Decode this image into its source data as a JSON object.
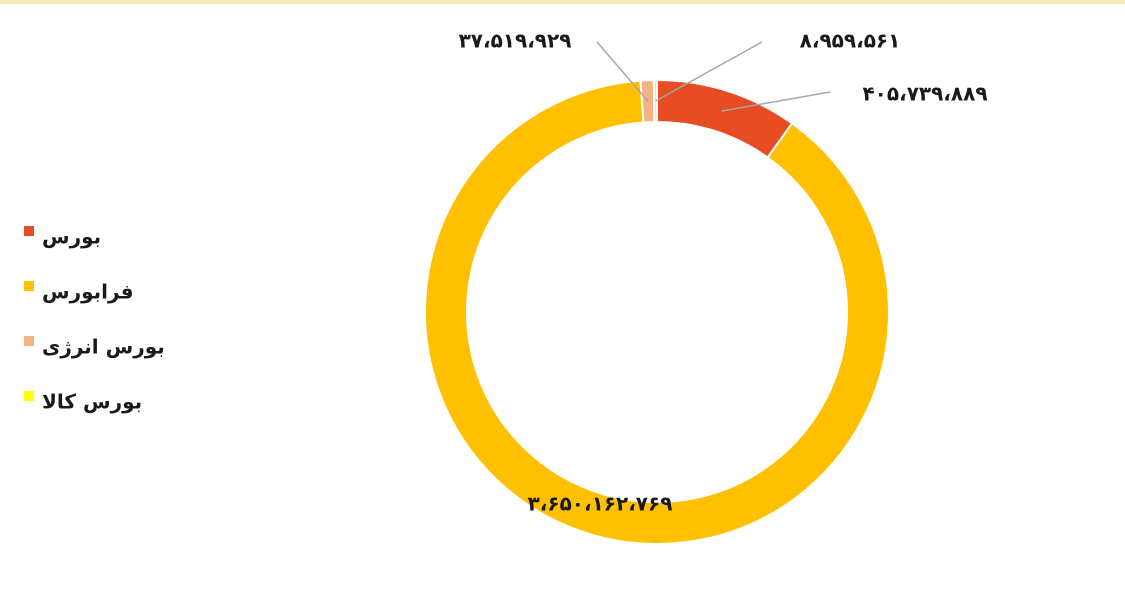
{
  "chart_data": {
    "type": "donut",
    "categories": [
      "بورس",
      "فرابورس",
      "بورس انرژی",
      "بورس کالا"
    ],
    "values": [
      405739889,
      3650162769,
      37519929,
      8959561
    ],
    "value_labels": [
      "۴۰۵،۷۳۹،۸۸۹",
      "۳،۶۵۰،۱۶۲،۷۶۹",
      "۳۷،۵۱۹،۹۲۹",
      "۸،۹۵۹،۵۶۱"
    ],
    "colors": [
      "#e84c22",
      "#ffc000",
      "#f4b183",
      "#ffff00"
    ],
    "legend": "left"
  }
}
